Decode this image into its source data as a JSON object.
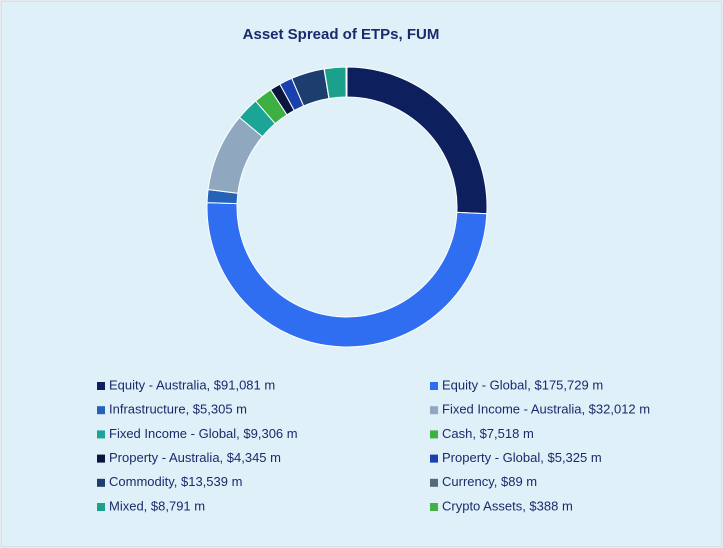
{
  "chart_data": {
    "type": "donut",
    "title": "Asset Spread of ETPs, FUM",
    "categories": [
      "Equity - Australia, $91,081 m",
      "Equity - Global, $175,729 m",
      "Infrastructure, $5,305 m",
      "Fixed Income - Australia, $32,012 m",
      "Fixed Income - Global, $9,306 m",
      "Cash, $7,518 m",
      "Property - Australia, $4,345 m",
      "Property - Global, $5,325 m",
      "Commodity, $13,539 m",
      "Currency, $89 m",
      "Mixed, $8,791 m",
      "Crypto Assets, $388 m"
    ],
    "values": [
      91081,
      175729,
      5305,
      32012,
      9306,
      7518,
      4345,
      5325,
      13539,
      89,
      8791,
      388
    ],
    "colors": [
      "#0d1f5c",
      "#2f6ef0",
      "#2563b8",
      "#8fa8c0",
      "#1aa596",
      "#3cb043",
      "#0a1640",
      "#1a3fae",
      "#1d3d6e",
      "#556b7d",
      "#1ba08c",
      "#45b045"
    ]
  }
}
